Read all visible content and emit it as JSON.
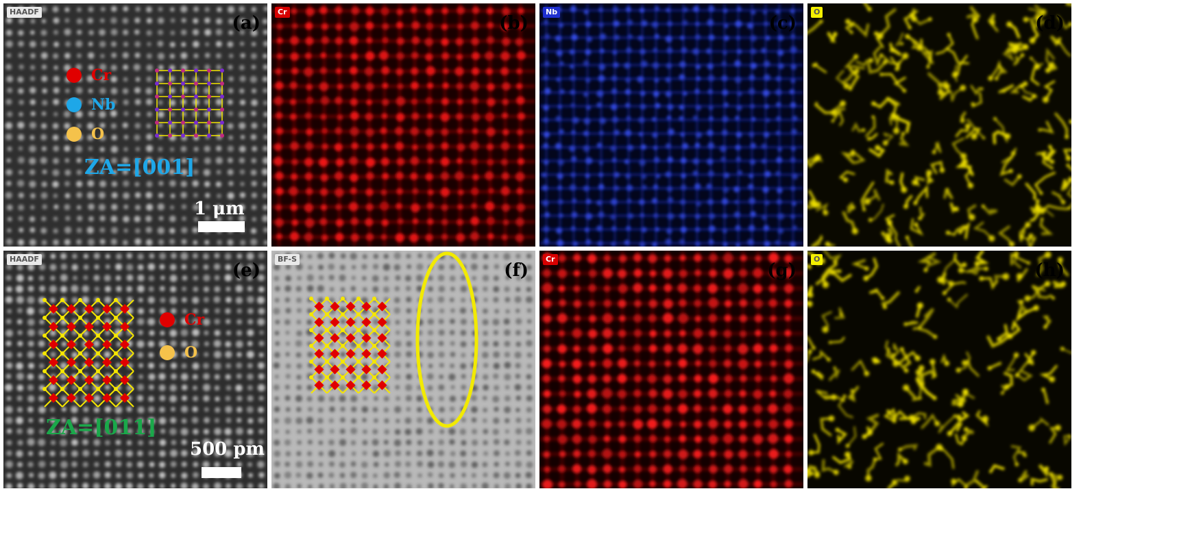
{
  "panels": {
    "a": {
      "letter": "(a)",
      "tag": "HAADF",
      "legend": [
        "Cr",
        "Nb",
        "O"
      ],
      "zone_axis": "ZA=[001]",
      "scale": "1 μm"
    },
    "b": {
      "letter": "(b)",
      "tag": "Cr"
    },
    "c": {
      "letter": "(c)",
      "tag": "Nb"
    },
    "d": {
      "letter": "(d)",
      "tag": "O"
    },
    "e": {
      "letter": "(e)",
      "tag": "HAADF",
      "legend": [
        "Cr",
        "O"
      ],
      "zone_axis": "ZA=[011]",
      "scale": "500 pm"
    },
    "f": {
      "letter": "(f)",
      "tag": "BF-S"
    },
    "g": {
      "letter": "(g)",
      "tag": "Cr"
    },
    "h": {
      "letter": "(h)",
      "tag": "O"
    }
  },
  "colors": {
    "cr": "#e00000",
    "nb": "#1ea7e8",
    "o": "#f5c24b",
    "za_001": "#1ea7e8",
    "za_011": "#1aa84a",
    "ellipse": "#f2ea00"
  }
}
